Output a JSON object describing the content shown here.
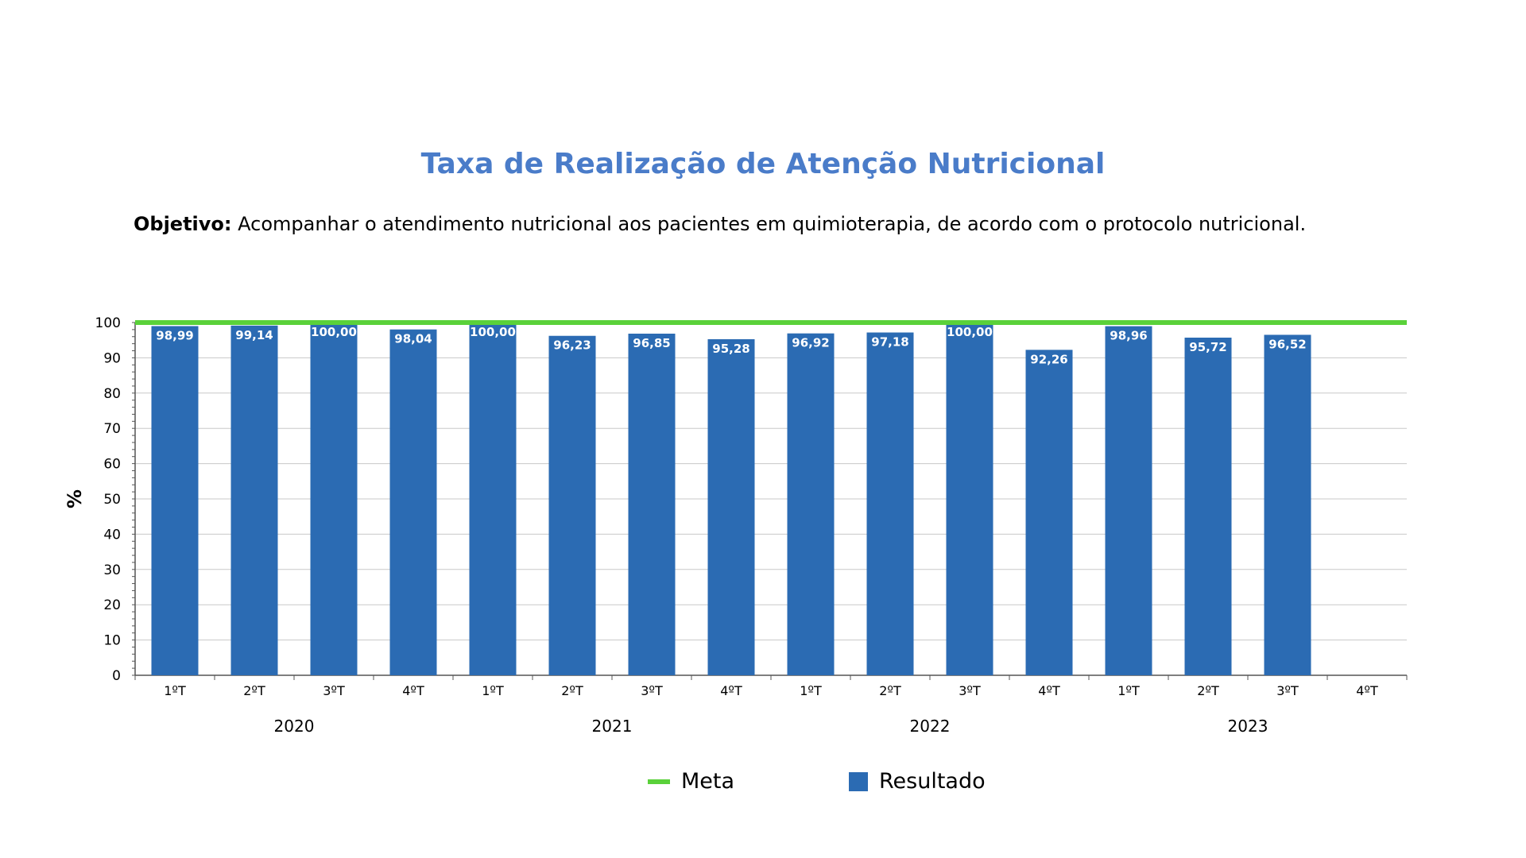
{
  "title": "Taxa de Realização de Atenção Nutricional",
  "objective": {
    "label": "Objetivo:",
    "text": " Acompanhar o atendimento nutricional aos pacientes em quimioterapia, de acordo com o protocolo nutricional."
  },
  "legend": {
    "meta_label": "Meta",
    "resultado_label": "Resultado"
  },
  "colors": {
    "bar": "#2b6bb3",
    "meta": "#5ad13a",
    "title": "#4a7cc9"
  },
  "chart_data": {
    "type": "bar",
    "ylabel": "%",
    "ylim": [
      0,
      100
    ],
    "yticks": [
      0,
      10,
      20,
      30,
      40,
      50,
      60,
      70,
      80,
      90,
      100
    ],
    "grid": true,
    "legend_position": "bottom",
    "categories": [
      "1ºT",
      "2ºT",
      "3ºT",
      "4ºT",
      "1ºT",
      "2ºT",
      "3ºT",
      "4ºT",
      "1ºT",
      "2ºT",
      "3ºT",
      "4ºT",
      "1ºT",
      "2ºT",
      "3ºT",
      "4ºT"
    ],
    "groups": [
      "2020",
      "2021",
      "2022",
      "2023"
    ],
    "series": [
      {
        "name": "Resultado",
        "type": "bar",
        "values": [
          98.99,
          99.14,
          100.0,
          98.04,
          100.0,
          96.23,
          96.85,
          95.28,
          96.92,
          97.18,
          100.0,
          92.26,
          98.96,
          95.72,
          96.52,
          null
        ],
        "labels": [
          "98,99",
          "99,14",
          "100,00",
          "98,04",
          "100,00",
          "96,23",
          "96,85",
          "95,28",
          "96,92",
          "97,18",
          "100,00",
          "92,26",
          "98,96",
          "95,72",
          "96,52",
          ""
        ]
      },
      {
        "name": "Meta",
        "type": "line",
        "value": 100
      }
    ]
  }
}
